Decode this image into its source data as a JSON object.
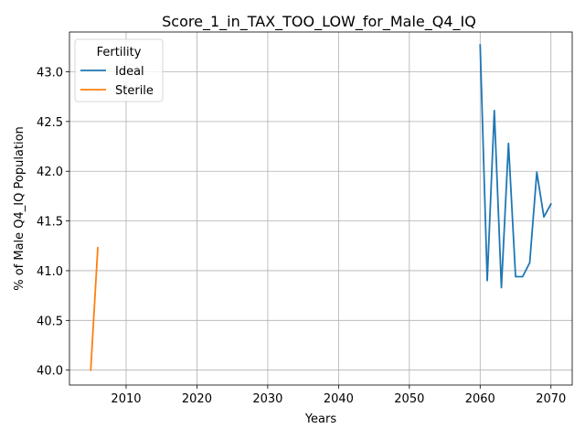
{
  "chart_data": {
    "type": "line",
    "title": "Score_1_in_TAX_TOO_LOW_for_Male_Q4_IQ",
    "xlabel": "Years",
    "ylabel": "% of Male Q4_IQ Population",
    "xlim": [
      2002,
      2073
    ],
    "ylim": [
      39.85,
      43.4
    ],
    "xticks": [
      2010,
      2020,
      2030,
      2040,
      2050,
      2060,
      2070
    ],
    "yticks": [
      40.0,
      40.5,
      41.0,
      41.5,
      42.0,
      42.5,
      43.0
    ],
    "ytick_labels": [
      "40.0",
      "40.5",
      "41.0",
      "41.5",
      "42.0",
      "42.5",
      "43.0"
    ],
    "grid": true,
    "legend": {
      "title": "Fertility",
      "placement": "top-left"
    },
    "series": [
      {
        "name": "Ideal",
        "color": "#1f77b4",
        "x": [
          2060,
          2061,
          2062,
          2063,
          2064,
          2065,
          2066,
          2067,
          2068,
          2069,
          2070
        ],
        "y": [
          43.27,
          40.9,
          42.61,
          40.83,
          42.28,
          40.94,
          40.94,
          41.08,
          41.99,
          41.54,
          41.67
        ]
      },
      {
        "name": "Sterile",
        "color": "#ff7f0e",
        "x": [
          2005,
          2006
        ],
        "y": [
          40.0,
          41.23
        ]
      }
    ]
  }
}
